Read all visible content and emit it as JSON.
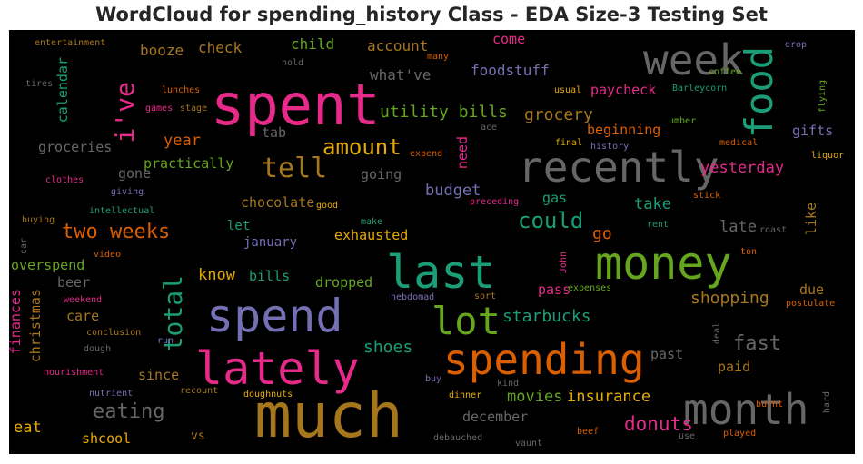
{
  "chart_data": {
    "type": "wordcloud",
    "title": "WordCloud for spending_history Class - EDA Size-3 Testing Set",
    "background": "#000000",
    "words": [
      {
        "text": "much",
        "color": "#a6761d",
        "vertical": false
      },
      {
        "text": "spent",
        "color": "#e7298a",
        "vertical": false
      },
      {
        "text": "money",
        "color": "#66a61e",
        "vertical": false
      },
      {
        "text": "last",
        "color": "#1b9e77",
        "vertical": false
      },
      {
        "text": "spend",
        "color": "#7570b3",
        "vertical": false
      },
      {
        "text": "lately",
        "color": "#e7298a",
        "vertical": false
      },
      {
        "text": "spending",
        "color": "#d95f02",
        "vertical": false
      },
      {
        "text": "recently",
        "color": "#666666",
        "vertical": false
      },
      {
        "text": "month",
        "color": "#666666",
        "vertical": false
      },
      {
        "text": "week",
        "color": "#666666",
        "vertical": false
      },
      {
        "text": "food",
        "color": "#1b9e77",
        "vertical": true
      },
      {
        "text": "lot",
        "color": "#66a61e",
        "vertical": false
      },
      {
        "text": "tell",
        "color": "#a6761d",
        "vertical": false
      },
      {
        "text": "total",
        "color": "#1b9e77",
        "vertical": true
      },
      {
        "text": "i've",
        "color": "#e7298a",
        "vertical": true
      },
      {
        "text": "amount",
        "color": "#e6ab02",
        "vertical": false
      },
      {
        "text": "could",
        "color": "#1b9e77",
        "vertical": false
      },
      {
        "text": "two weeks",
        "color": "#d95f02",
        "vertical": false
      },
      {
        "text": "eating",
        "color": "#666666",
        "vertical": false
      },
      {
        "text": "fast",
        "color": "#666666",
        "vertical": false
      },
      {
        "text": "donuts",
        "color": "#e7298a",
        "vertical": false
      },
      {
        "text": "grocery",
        "color": "#a6761d",
        "vertical": false
      },
      {
        "text": "utility bills",
        "color": "#66a61e",
        "vertical": false
      },
      {
        "text": "starbucks",
        "color": "#1b9e77",
        "vertical": false
      },
      {
        "text": "shopping",
        "color": "#a6761d",
        "vertical": false
      },
      {
        "text": "shoes",
        "color": "#1b9e77",
        "vertical": false
      },
      {
        "text": "movies",
        "color": "#66a61e",
        "vertical": false
      },
      {
        "text": "insurance",
        "color": "#e6ab02",
        "vertical": false
      },
      {
        "text": "budget",
        "color": "#7570b3",
        "vertical": false
      },
      {
        "text": "year",
        "color": "#d95f02",
        "vertical": false
      },
      {
        "text": "yesterday",
        "color": "#e7298a",
        "vertical": false
      },
      {
        "text": "take",
        "color": "#1b9e77",
        "vertical": false
      },
      {
        "text": "late",
        "color": "#666666",
        "vertical": false
      },
      {
        "text": "go",
        "color": "#d95f02",
        "vertical": false
      },
      {
        "text": "know",
        "color": "#e6ab02",
        "vertical": false
      },
      {
        "text": "exhausted",
        "color": "#e6ab02",
        "vertical": false
      },
      {
        "text": "paycheck",
        "color": "#e7298a",
        "vertical": false
      },
      {
        "text": "beginning",
        "color": "#d95f02",
        "vertical": false
      },
      {
        "text": "gifts",
        "color": "#7570b3",
        "vertical": false
      },
      {
        "text": "foodstuff",
        "color": "#7570b3",
        "vertical": false
      },
      {
        "text": "account",
        "color": "#a6761d",
        "vertical": false
      },
      {
        "text": "what've",
        "color": "#666666",
        "vertical": false
      },
      {
        "text": "check",
        "color": "#a6761d",
        "vertical": false
      },
      {
        "text": "child",
        "color": "#66a61e",
        "vertical": false
      },
      {
        "text": "booze",
        "color": "#a6761d",
        "vertical": false
      },
      {
        "text": "come",
        "color": "#e7298a",
        "vertical": false
      },
      {
        "text": "calendar",
        "color": "#1b9e77",
        "vertical": true
      },
      {
        "text": "groceries",
        "color": "#666666",
        "vertical": false
      },
      {
        "text": "practically",
        "color": "#66a61e",
        "vertical": false
      },
      {
        "text": "gone",
        "color": "#666666",
        "vertical": false
      },
      {
        "text": "going",
        "color": "#666666",
        "vertical": false
      },
      {
        "text": "chocolate",
        "color": "#a6761d",
        "vertical": false
      },
      {
        "text": "gas",
        "color": "#1b9e77",
        "vertical": false
      },
      {
        "text": "tab",
        "color": "#666666",
        "vertical": false
      },
      {
        "text": "need",
        "color": "#e7298a",
        "vertical": true
      },
      {
        "text": "like",
        "color": "#a6761d",
        "vertical": true
      },
      {
        "text": "january",
        "color": "#7570b3",
        "vertical": false
      },
      {
        "text": "let",
        "color": "#1b9e77",
        "vertical": false
      },
      {
        "text": "bills",
        "color": "#1b9e77",
        "vertical": false
      },
      {
        "text": "dropped",
        "color": "#66a61e",
        "vertical": false
      },
      {
        "text": "pass",
        "color": "#e7298a",
        "vertical": false
      },
      {
        "text": "due",
        "color": "#a6761d",
        "vertical": false
      },
      {
        "text": "overspend",
        "color": "#66a61e",
        "vertical": false
      },
      {
        "text": "beer",
        "color": "#666666",
        "vertical": false
      },
      {
        "text": "care",
        "color": "#a6761d",
        "vertical": false
      },
      {
        "text": "finances",
        "color": "#e7298a",
        "vertical": true
      },
      {
        "text": "christmas",
        "color": "#a6761d",
        "vertical": true
      },
      {
        "text": "since",
        "color": "#a6761d",
        "vertical": false
      },
      {
        "text": "past",
        "color": "#666666",
        "vertical": false
      },
      {
        "text": "paid",
        "color": "#a6761d",
        "vertical": false
      },
      {
        "text": "december",
        "color": "#666666",
        "vertical": false
      },
      {
        "text": "eat",
        "color": "#e6ab02",
        "vertical": false
      },
      {
        "text": "vs",
        "color": "#a6761d",
        "vertical": false
      },
      {
        "text": "shcool",
        "color": "#e6ab02",
        "vertical": false
      },
      {
        "text": "entertainment",
        "color": "#a6761d",
        "vertical": false
      },
      {
        "text": "tires",
        "color": "#666666",
        "vertical": false
      },
      {
        "text": "hold",
        "color": "#666666",
        "vertical": false
      },
      {
        "text": "many",
        "color": "#d95f02",
        "vertical": false
      },
      {
        "text": "drop",
        "color": "#7570b3",
        "vertical": false
      },
      {
        "text": "coffee",
        "color": "#66a61e",
        "vertical": false
      },
      {
        "text": "flying",
        "color": "#66a61e",
        "vertical": true
      },
      {
        "text": "Barleycorn",
        "color": "#1b9e77",
        "vertical": false
      },
      {
        "text": "lunches",
        "color": "#d95f02",
        "vertical": false
      },
      {
        "text": "usual",
        "color": "#e6ab02",
        "vertical": false
      },
      {
        "text": "games",
        "color": "#e7298a",
        "vertical": false
      },
      {
        "text": "stage",
        "color": "#a6761d",
        "vertical": false
      },
      {
        "text": "umber",
        "color": "#66a61e",
        "vertical": false
      },
      {
        "text": "ace",
        "color": "#666666",
        "vertical": false
      },
      {
        "text": "final",
        "color": "#e6ab02",
        "vertical": false
      },
      {
        "text": "history",
        "color": "#7570b3",
        "vertical": false
      },
      {
        "text": "medical",
        "color": "#d95f02",
        "vertical": false
      },
      {
        "text": "expend",
        "color": "#d95f02",
        "vertical": false
      },
      {
        "text": "liquor",
        "color": "#e6ab02",
        "vertical": false
      },
      {
        "text": "clothes",
        "color": "#e7298a",
        "vertical": false
      },
      {
        "text": "giving",
        "color": "#7570b3",
        "vertical": false
      },
      {
        "text": "stick",
        "color": "#d95f02",
        "vertical": false
      },
      {
        "text": "good",
        "color": "#e6ab02",
        "vertical": false
      },
      {
        "text": "preceding",
        "color": "#e7298a",
        "vertical": false
      },
      {
        "text": "intellectual",
        "color": "#1b9e77",
        "vertical": false
      },
      {
        "text": "buying",
        "color": "#a6761d",
        "vertical": false
      },
      {
        "text": "car",
        "color": "#666666",
        "vertical": true
      },
      {
        "text": "make",
        "color": "#1b9e77",
        "vertical": false
      },
      {
        "text": "rent",
        "color": "#1b9e77",
        "vertical": false
      },
      {
        "text": "roast",
        "color": "#666666",
        "vertical": false
      },
      {
        "text": "video",
        "color": "#d95f02",
        "vertical": false
      },
      {
        "text": "ton",
        "color": "#d95f02",
        "vertical": false
      },
      {
        "text": "John",
        "color": "#e7298a",
        "vertical": true
      },
      {
        "text": "expenses",
        "color": "#66a61e",
        "vertical": false
      },
      {
        "text": "weekend",
        "color": "#e7298a",
        "vertical": false
      },
      {
        "text": "hebdomad",
        "color": "#7570b3",
        "vertical": false
      },
      {
        "text": "sort",
        "color": "#a6761d",
        "vertical": false
      },
      {
        "text": "postulate",
        "color": "#d95f02",
        "vertical": false
      },
      {
        "text": "conclusion",
        "color": "#a6761d",
        "vertical": false
      },
      {
        "text": "deal",
        "color": "#666666",
        "vertical": true
      },
      {
        "text": "run",
        "color": "#7570b3",
        "vertical": false
      },
      {
        "text": "dough",
        "color": "#666666",
        "vertical": false
      },
      {
        "text": "nourishment",
        "color": "#e7298a",
        "vertical": false
      },
      {
        "text": "buy",
        "color": "#7570b3",
        "vertical": false
      },
      {
        "text": "kind",
        "color": "#666666",
        "vertical": false
      },
      {
        "text": "nutrient",
        "color": "#7570b3",
        "vertical": false
      },
      {
        "text": "recount",
        "color": "#a6761d",
        "vertical": false
      },
      {
        "text": "doughnuts",
        "color": "#e6ab02",
        "vertical": false
      },
      {
        "text": "dinner",
        "color": "#e6ab02",
        "vertical": false
      },
      {
        "text": "hard",
        "color": "#666666",
        "vertical": true
      },
      {
        "text": "burnt",
        "color": "#d95f02",
        "vertical": false
      },
      {
        "text": "beef",
        "color": "#d95f02",
        "vertical": false
      },
      {
        "text": "use",
        "color": "#666666",
        "vertical": false
      },
      {
        "text": "played",
        "color": "#d95f02",
        "vertical": false
      },
      {
        "text": "debauched",
        "color": "#666666",
        "vertical": false
      },
      {
        "text": "vaunt",
        "color": "#666666",
        "vertical": false
      }
    ]
  }
}
